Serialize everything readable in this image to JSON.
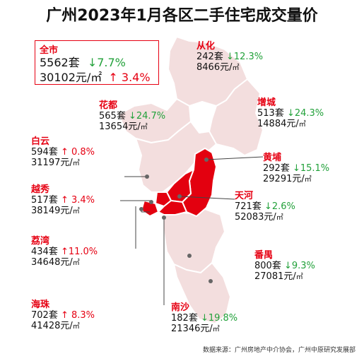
{
  "title": "广州2023年1月各区二手住宅成交量价",
  "city": {
    "name": "全市",
    "volume": "5562套",
    "volume_change": "↓7.7%",
    "price": "30102元/㎡",
    "price_change": "↑ 3.4%"
  },
  "districts": {
    "conghua": {
      "name": "从化",
      "volume": "242套",
      "change": "↓12.3%",
      "price": "8466元/",
      "unit": "㎡"
    },
    "huadu": {
      "name": "花都",
      "volume": "565套",
      "change": "↓24.7%",
      "price": "13654元/",
      "unit": "㎡"
    },
    "zengcheng": {
      "name": "增城",
      "volume": "513套",
      "change": "↓24.3%",
      "price": "14884元/",
      "unit": "㎡"
    },
    "baiyun": {
      "name": "白云",
      "volume": "594套",
      "change": "↑ 0.8%",
      "price": "31197元/",
      "unit": "㎡"
    },
    "huangpu": {
      "name": "黄埔",
      "volume": "292套",
      "change": "↓15.1%",
      "price": "29291元/",
      "unit": "㎡"
    },
    "yuexiu": {
      "name": "越秀",
      "volume": "517套",
      "change": "↑ 3.4%",
      "price": "38149元/",
      "unit": "㎡"
    },
    "tianhe": {
      "name": "天河",
      "volume": "721套",
      "change": "↓2.6%",
      "price": "52083元/",
      "unit": "㎡"
    },
    "liwan": {
      "name": "荔湾",
      "volume": "434套",
      "change": "↑11.0%",
      "price": "34648元/",
      "unit": "㎡"
    },
    "panyu": {
      "name": "番禺",
      "volume": "800套",
      "change": "↓9.3%",
      "price": "27081元/",
      "unit": "㎡"
    },
    "haizhu": {
      "name": "海珠",
      "volume": "702套",
      "change": "↑ 8.3%",
      "price": "41428元/",
      "unit": "㎡"
    },
    "nansha": {
      "name": "南沙",
      "volume": "182套",
      "change": "↓19.8%",
      "price": "21346元/",
      "unit": "㎡"
    }
  },
  "source": "数据来源：广州房地产中介协会，广州中原研究发展部",
  "colors": {
    "accent": "#e60012",
    "down": "#22a13a",
    "map_light": "#f3dcdc",
    "map_dark": "#e3000f",
    "map_border": "#ffffff"
  }
}
